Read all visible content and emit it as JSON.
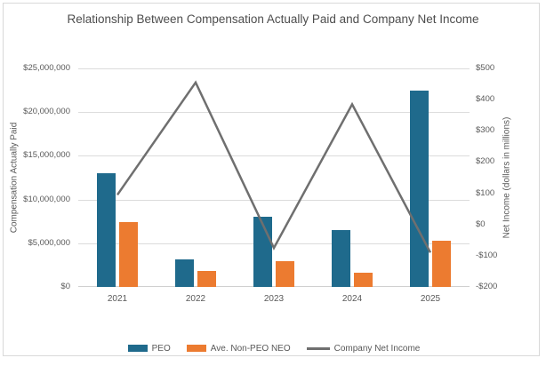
{
  "chart_data": {
    "type": "combo",
    "title": "Relationship Between Compensation Actually Paid and Company Net Income",
    "categories": [
      "2021",
      "2022",
      "2023",
      "2024",
      "2025"
    ],
    "bar_series": [
      {
        "name": "PEO",
        "axis": "left",
        "color": "#1f6a8c",
        "values": [
          13000000,
          3200000,
          8000000,
          6500000,
          22500000
        ]
      },
      {
        "name": "Ave. Non-PEO NEO",
        "axis": "left",
        "color": "#ec7b30",
        "values": [
          7400000,
          1800000,
          3000000,
          1600000,
          5300000
        ]
      }
    ],
    "line_series": [
      {
        "name": "Company Net Income",
        "axis": "right",
        "color": "#6f6f6f",
        "values": [
          95,
          455,
          -75,
          385,
          -90
        ]
      }
    ],
    "left_axis": {
      "label": "Compensation Actually Paid",
      "min": 0,
      "max": 25000000,
      "ticks": [
        "$25,000,000",
        "$20,000,000",
        "$15,000,000",
        "$10,000,000",
        "$5,000,000",
        "$0"
      ]
    },
    "right_axis": {
      "label": "Net Income (dollars in millions)",
      "min": -200,
      "max": 500,
      "ticks": [
        "$500",
        "$400",
        "$300",
        "$200",
        "$100",
        "$0",
        "-$100",
        "-$200"
      ]
    },
    "legend": {
      "position": "bottom",
      "entries": [
        "PEO",
        "Ave. Non-PEO NEO",
        "Company Net Income"
      ]
    },
    "grid": true,
    "colors": {
      "gridline": "#dcdcdc",
      "axis_text": "#595959",
      "title_text": "#4d4d4d",
      "frame_border": "#d9d9d9"
    }
  }
}
